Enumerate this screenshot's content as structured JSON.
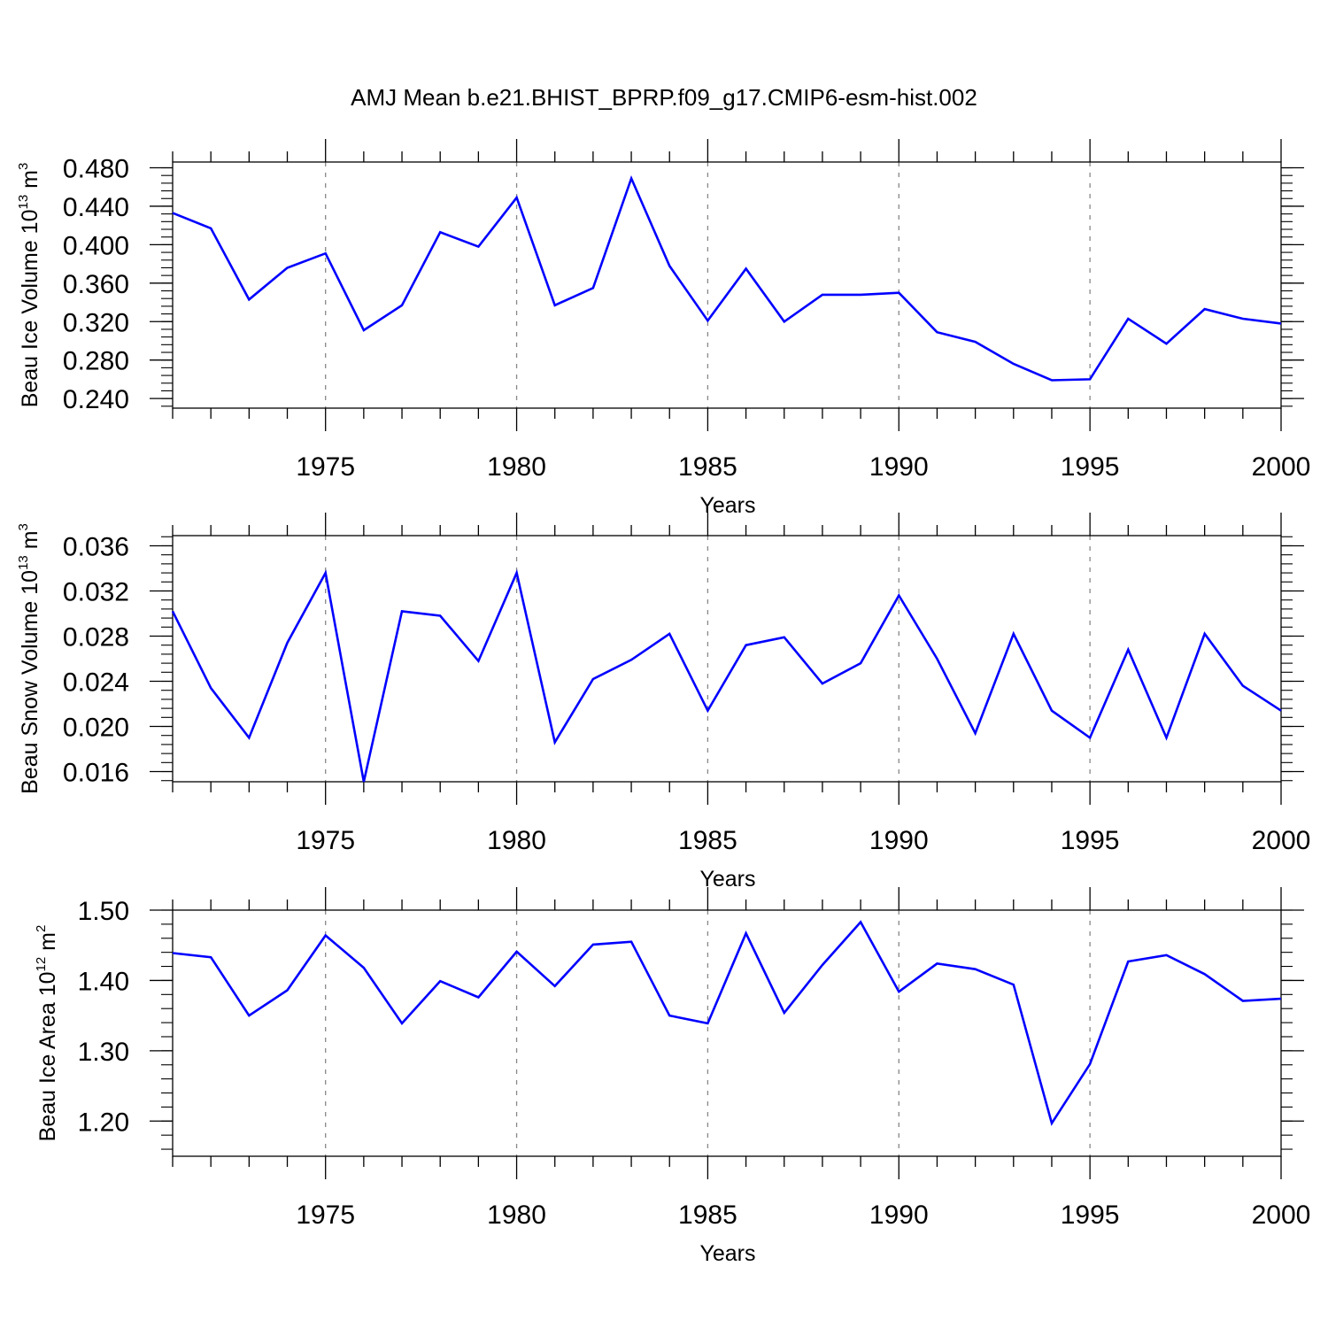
{
  "title": "AMJ Mean b.e21.BHIST_BPRP.f09_g17.CMIP6-esm-hist.002",
  "chart_data": [
    {
      "type": "line",
      "ylabel": {
        "text": "Beau Ice Volume 10",
        "exponent": "13",
        "unit": " m",
        "unit_exponent": "3"
      },
      "xlabel": "Years",
      "xlim": [
        1971,
        2000
      ],
      "ylim": [
        0.23,
        0.486
      ],
      "y_ticks": [
        "0.240",
        "0.280",
        "0.320",
        "0.360",
        "0.400",
        "0.440",
        "0.480"
      ],
      "y_minor_step": 0.008,
      "x_ticks": [
        "1975",
        "1980",
        "1985",
        "1990",
        "1995",
        "2000"
      ],
      "grid": "vertical dashed at major x ticks",
      "line_color": "#0000ff",
      "x": [
        1971,
        1972,
        1973,
        1974,
        1975,
        1976,
        1977,
        1978,
        1979,
        1980,
        1981,
        1982,
        1983,
        1984,
        1985,
        1986,
        1987,
        1988,
        1989,
        1990,
        1991,
        1992,
        1993,
        1994,
        1995,
        1996,
        1997,
        1998,
        1999,
        2000
      ],
      "values": [
        0.433,
        0.417,
        0.343,
        0.376,
        0.391,
        0.311,
        0.337,
        0.413,
        0.398,
        0.449,
        0.337,
        0.355,
        0.469,
        0.378,
        0.321,
        0.375,
        0.32,
        0.348,
        0.348,
        0.35,
        0.309,
        0.299,
        0.276,
        0.259,
        0.26,
        0.323,
        0.297,
        0.333,
        0.323,
        0.318
      ]
    },
    {
      "type": "line",
      "ylabel": {
        "text": "Beau Snow Volume 10",
        "exponent": "13",
        "unit": " m",
        "unit_exponent": "3"
      },
      "xlabel": "Years",
      "xlim": [
        1971,
        2000
      ],
      "ylim": [
        0.0151,
        0.0369
      ],
      "y_ticks": [
        "0.016",
        "0.020",
        "0.024",
        "0.028",
        "0.032",
        "0.036"
      ],
      "y_minor_step": 0.0008,
      "x_ticks": [
        "1975",
        "1980",
        "1985",
        "1990",
        "1995",
        "2000"
      ],
      "grid": "vertical dashed at major x ticks",
      "line_color": "#0000ff",
      "x": [
        1971,
        1972,
        1973,
        1974,
        1975,
        1976,
        1977,
        1978,
        1979,
        1980,
        1981,
        1982,
        1983,
        1984,
        1985,
        1986,
        1987,
        1988,
        1989,
        1990,
        1991,
        1992,
        1993,
        1994,
        1995,
        1996,
        1997,
        1998,
        1999,
        2000
      ],
      "values": [
        0.0302,
        0.0234,
        0.019,
        0.0274,
        0.0336,
        0.0151,
        0.0302,
        0.0298,
        0.0258,
        0.0336,
        0.0186,
        0.0242,
        0.0259,
        0.0282,
        0.0214,
        0.0272,
        0.0279,
        0.0238,
        0.0256,
        0.0316,
        0.026,
        0.0194,
        0.0282,
        0.0214,
        0.019,
        0.0268,
        0.019,
        0.0282,
        0.0236,
        0.0214
      ]
    },
    {
      "type": "line",
      "ylabel": {
        "text": "Beau Ice Area 10",
        "exponent": "12",
        "unit": " m",
        "unit_exponent": "2"
      },
      "xlabel": "Years",
      "xlim": [
        1971,
        2000
      ],
      "ylim": [
        1.15,
        1.5
      ],
      "y_ticks": [
        "1.20",
        "1.30",
        "1.40",
        "1.50"
      ],
      "y_minor_step": 0.02,
      "x_ticks": [
        "1975",
        "1980",
        "1985",
        "1990",
        "1995",
        "2000"
      ],
      "grid": "vertical dashed at major x ticks",
      "line_color": "#0000ff",
      "x": [
        1971,
        1972,
        1973,
        1974,
        1975,
        1976,
        1977,
        1978,
        1979,
        1980,
        1981,
        1982,
        1983,
        1984,
        1985,
        1986,
        1987,
        1988,
        1989,
        1990,
        1991,
        1992,
        1993,
        1994,
        1995,
        1996,
        1997,
        1998,
        1999,
        2000
      ],
      "values": [
        1.439,
        1.433,
        1.35,
        1.386,
        1.464,
        1.418,
        1.339,
        1.399,
        1.376,
        1.441,
        1.392,
        1.451,
        1.455,
        1.35,
        1.339,
        1.467,
        1.354,
        1.422,
        1.483,
        1.384,
        1.424,
        1.416,
        1.394,
        1.197,
        1.281,
        1.427,
        1.436,
        1.409,
        1.371,
        1.374
      ]
    }
  ]
}
